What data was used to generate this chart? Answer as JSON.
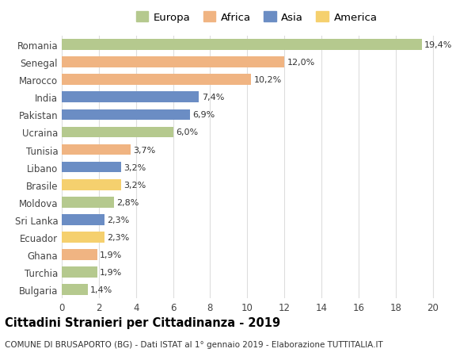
{
  "categories": [
    "Romania",
    "Senegal",
    "Marocco",
    "India",
    "Pakistan",
    "Ucraina",
    "Tunisia",
    "Libano",
    "Brasile",
    "Moldova",
    "Sri Lanka",
    "Ecuador",
    "Ghana",
    "Turchia",
    "Bulgaria"
  ],
  "values": [
    19.4,
    12.0,
    10.2,
    7.4,
    6.9,
    6.0,
    3.7,
    3.2,
    3.2,
    2.8,
    2.3,
    2.3,
    1.9,
    1.9,
    1.4
  ],
  "labels": [
    "19,4%",
    "12,0%",
    "10,2%",
    "7,4%",
    "6,9%",
    "6,0%",
    "3,7%",
    "3,2%",
    "3,2%",
    "2,8%",
    "2,3%",
    "2,3%",
    "1,9%",
    "1,9%",
    "1,4%"
  ],
  "colors": [
    "#b5c98e",
    "#f0b482",
    "#f0b482",
    "#6b8dc4",
    "#6b8dc4",
    "#b5c98e",
    "#f0b482",
    "#6b8dc4",
    "#f5d06e",
    "#b5c98e",
    "#6b8dc4",
    "#f5d06e",
    "#f0b482",
    "#b5c98e",
    "#b5c98e"
  ],
  "legend": [
    {
      "label": "Europa",
      "color": "#b5c98e"
    },
    {
      "label": "Africa",
      "color": "#f0b482"
    },
    {
      "label": "Asia",
      "color": "#6b8dc4"
    },
    {
      "label": "America",
      "color": "#f5d06e"
    }
  ],
  "title": "Cittadini Stranieri per Cittadinanza - 2019",
  "subtitle": "COMUNE DI BRUSAPORTO (BG) - Dati ISTAT al 1° gennaio 2019 - Elaborazione TUTTITALIA.IT",
  "xlim": [
    0,
    21
  ],
  "xticks": [
    0,
    2,
    4,
    6,
    8,
    10,
    12,
    14,
    16,
    18,
    20
  ],
  "background_color": "#ffffff",
  "grid_color": "#dddddd",
  "bar_height": 0.62,
  "title_fontsize": 10.5,
  "subtitle_fontsize": 7.5,
  "tick_fontsize": 8.5,
  "label_fontsize": 8,
  "legend_fontsize": 9.5
}
